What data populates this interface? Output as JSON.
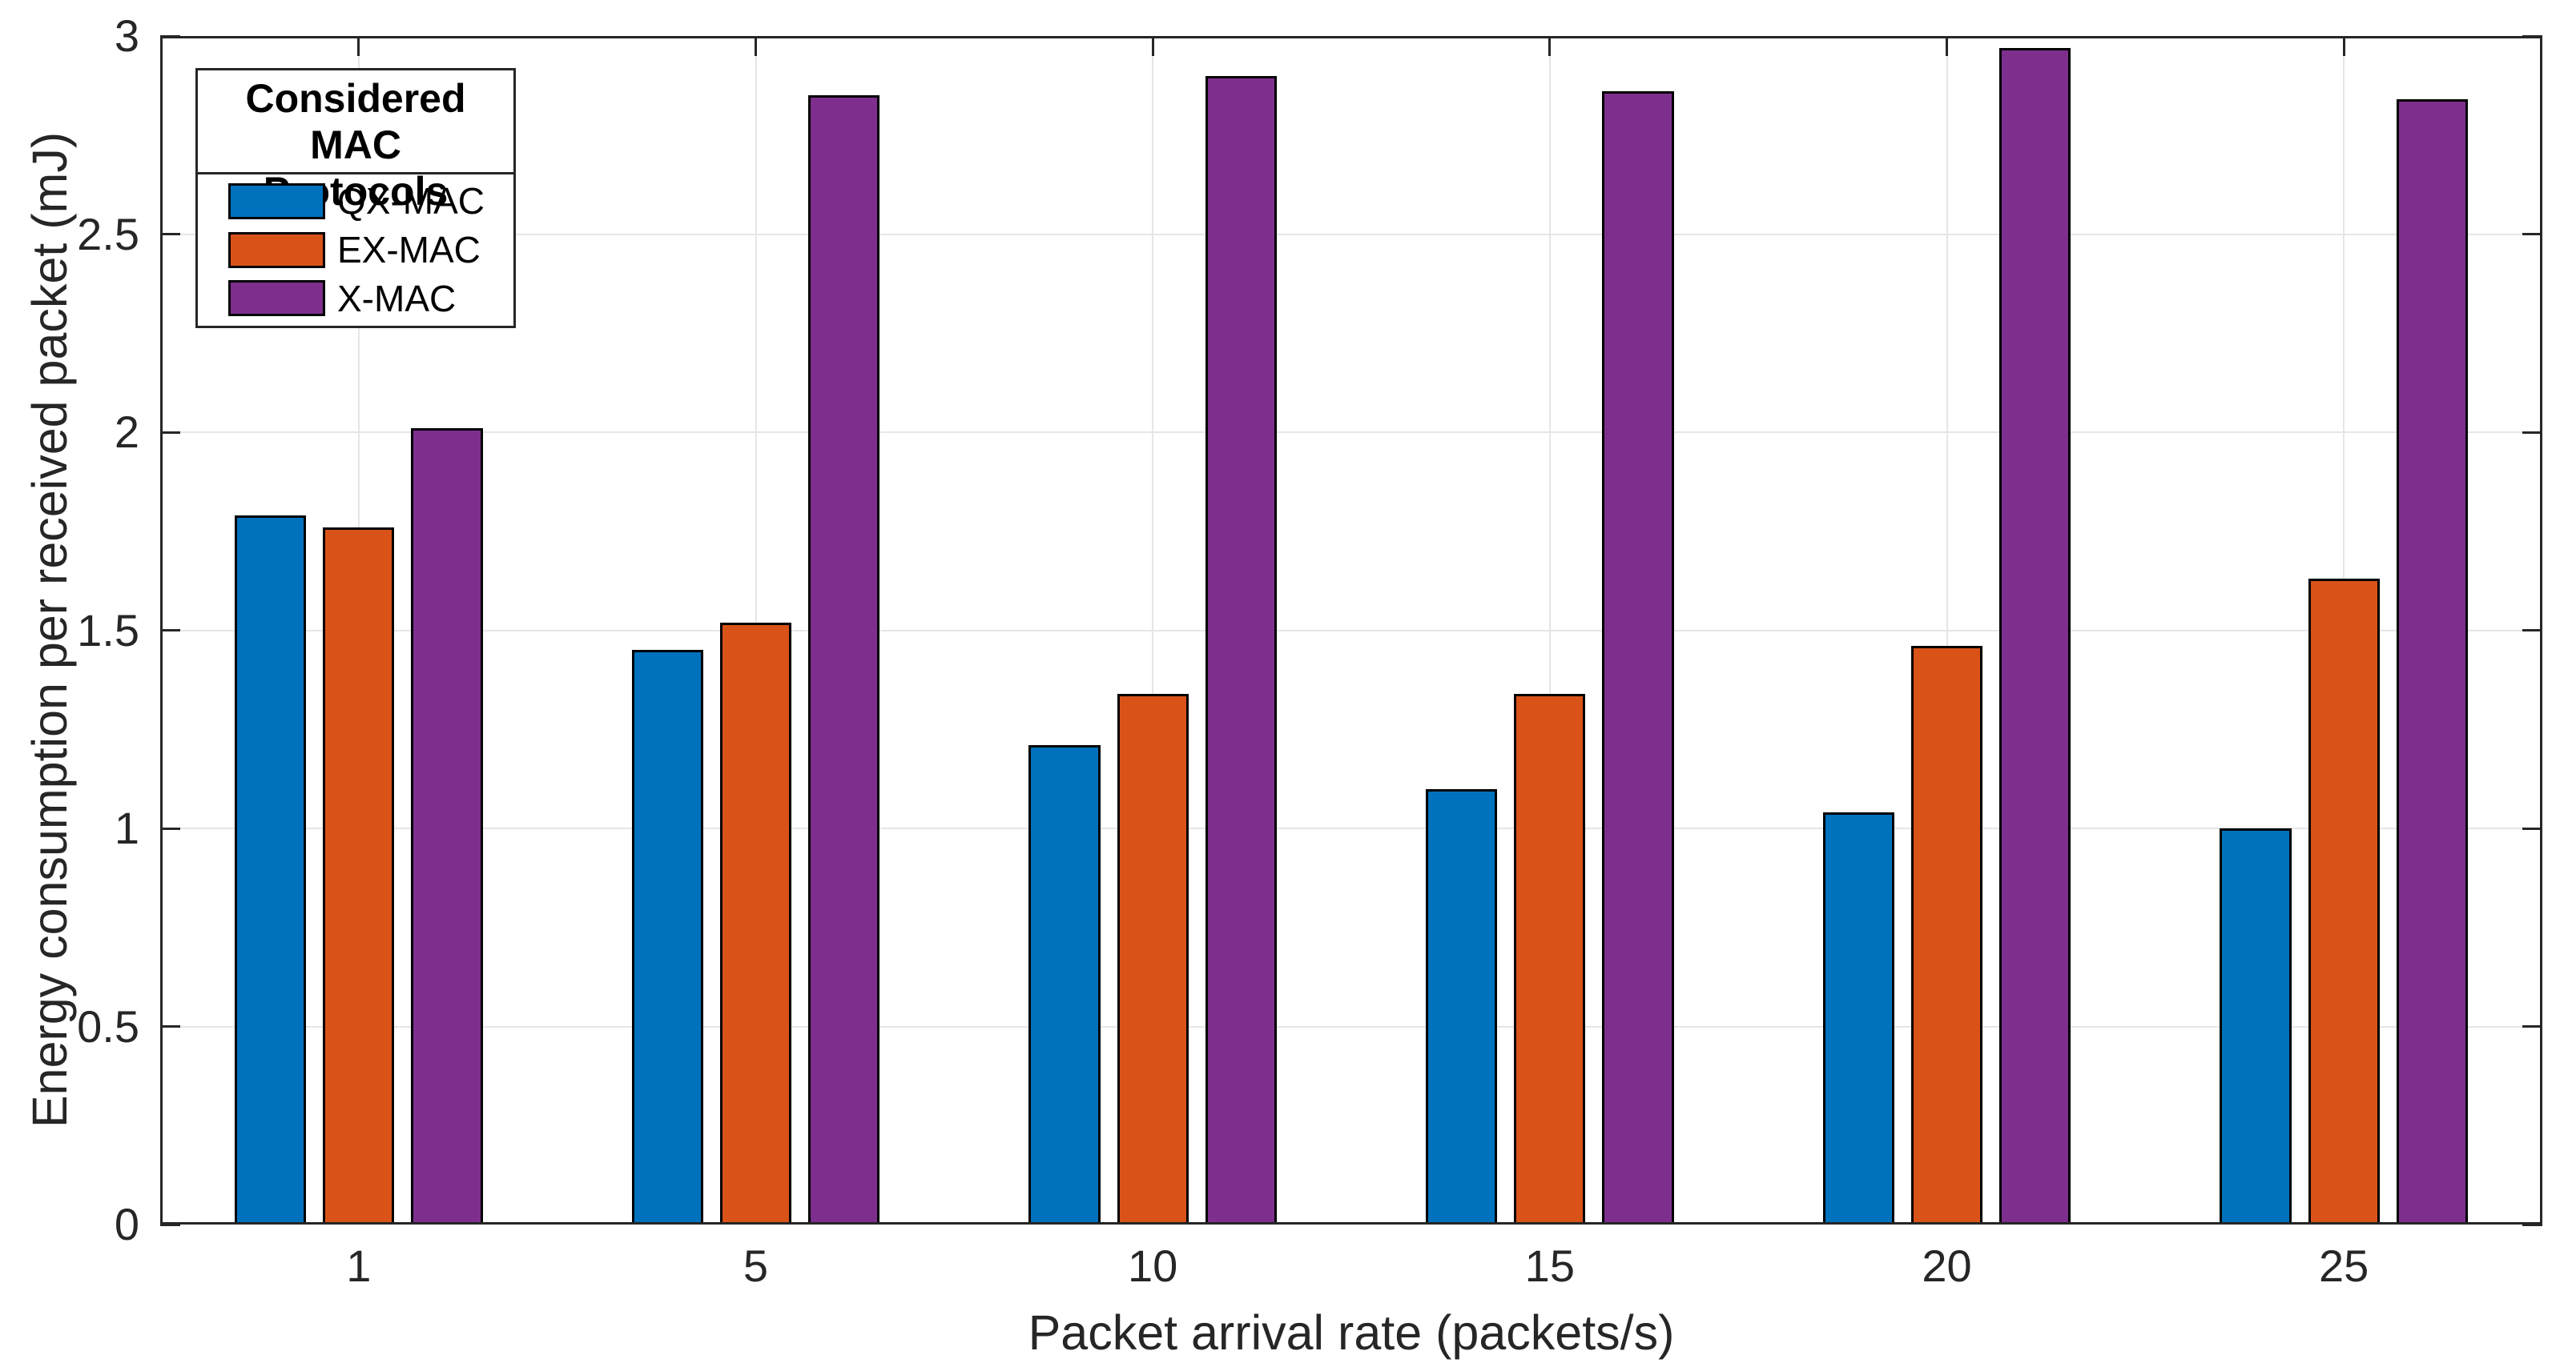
{
  "chart_data": {
    "type": "bar",
    "categories": [
      "1",
      "5",
      "10",
      "15",
      "20",
      "25"
    ],
    "series": [
      {
        "name": "QX-MAC",
        "color": "#0072BD",
        "values": [
          1.79,
          1.45,
          1.21,
          1.1,
          1.04,
          1.0
        ]
      },
      {
        "name": "EX-MAC",
        "color": "#D95319",
        "values": [
          1.76,
          1.52,
          1.34,
          1.34,
          1.46,
          1.63
        ]
      },
      {
        "name": "X-MAC",
        "color": "#7E2F8E",
        "values": [
          2.01,
          2.85,
          2.9,
          2.86,
          2.97,
          2.84
        ]
      }
    ],
    "xlabel": "Packet arrival rate (packets/s)",
    "ylabel": "Energy consumption per received packet (mJ)",
    "ylim": [
      0,
      3
    ],
    "yticks": [
      0,
      0.5,
      1,
      1.5,
      2,
      2.5,
      3
    ],
    "ytick_labels": [
      "0",
      "0.5",
      "1",
      "1.5",
      "2",
      "2.5",
      "3"
    ],
    "grid": true,
    "legend": {
      "title_lines": [
        "Considered MAC",
        "Protocols"
      ],
      "entries": [
        "QX-MAC",
        "EX-MAC",
        "X-MAC"
      ],
      "position": "top-left"
    }
  },
  "style": {
    "background": "#FFFFFF",
    "axis_color": "#262626",
    "grid_color": "#E6E6E6",
    "bar_edge_color": "#000000",
    "text_color": "#262626",
    "legend_text_color": "#000000"
  }
}
